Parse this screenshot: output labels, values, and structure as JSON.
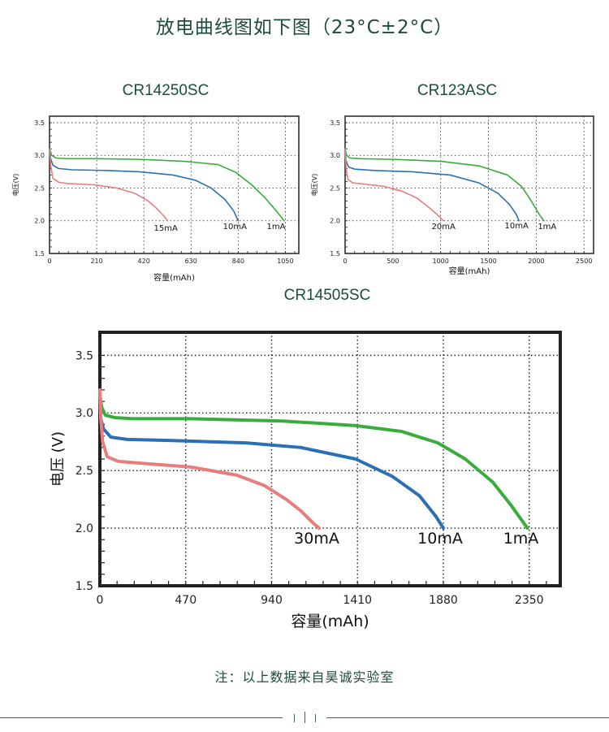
{
  "title": "放电曲线图如下图（23°C±2°C）",
  "note": "注：以上数据来自昊诚实验室",
  "colors": {
    "green": "#39ac3c",
    "blue": "#2b70b4",
    "red": "#e87d7d",
    "title": "#1d4a3e"
  },
  "chart_data": [
    {
      "type": "line",
      "title": "CR14250SC",
      "xlabel": "容量(mAh)",
      "ylabel": "电压(V)",
      "xticks": [
        0,
        210,
        420,
        630,
        840,
        1050
      ],
      "yticks": [
        1.5,
        2.0,
        2.5,
        3.0,
        3.5
      ],
      "xlim": [
        0,
        1110
      ],
      "ylim": [
        1.5,
        3.6
      ],
      "grid": true,
      "series": [
        {
          "name": "1mA",
          "color": "#39ac3c",
          "x": [
            0,
            10,
            30,
            80,
            200,
            400,
            600,
            750,
            830,
            900,
            960,
            1010,
            1045
          ],
          "y": [
            3.1,
            3.0,
            2.96,
            2.95,
            2.95,
            2.94,
            2.91,
            2.86,
            2.74,
            2.55,
            2.35,
            2.15,
            2.0
          ]
        },
        {
          "name": "10mA",
          "color": "#2b70b4",
          "x": [
            0,
            5,
            15,
            40,
            100,
            250,
            400,
            550,
            650,
            720,
            780,
            820,
            840
          ],
          "y": [
            3.1,
            2.95,
            2.85,
            2.8,
            2.78,
            2.77,
            2.75,
            2.7,
            2.62,
            2.5,
            2.33,
            2.15,
            2.0
          ]
        },
        {
          "name": "15mA",
          "color": "#e87d7d",
          "x": [
            0,
            5,
            15,
            40,
            80,
            200,
            300,
            380,
            440,
            480,
            510,
            525
          ],
          "y": [
            3.1,
            2.85,
            2.65,
            2.59,
            2.57,
            2.55,
            2.5,
            2.42,
            2.3,
            2.18,
            2.07,
            2.0
          ]
        }
      ]
    },
    {
      "type": "line",
      "title": "CR123ASC",
      "xlabel": "容量(mAh)",
      "ylabel": "电压(V)",
      "xticks": [
        0,
        500,
        1000,
        1500,
        2000,
        2500
      ],
      "yticks": [
        1.5,
        2.0,
        2.5,
        3.0,
        3.5
      ],
      "xlim": [
        0,
        2600
      ],
      "ylim": [
        1.5,
        3.6
      ],
      "grid": true,
      "series": [
        {
          "name": "1mA",
          "color": "#39ac3c",
          "x": [
            0,
            15,
            50,
            150,
            500,
            1000,
            1400,
            1700,
            1850,
            1950,
            2030,
            2080
          ],
          "y": [
            3.1,
            3.0,
            2.96,
            2.95,
            2.94,
            2.91,
            2.84,
            2.7,
            2.52,
            2.3,
            2.1,
            2.0
          ]
        },
        {
          "name": "10mA",
          "color": "#2b70b4",
          "x": [
            0,
            10,
            40,
            100,
            300,
            700,
            1100,
            1400,
            1600,
            1720,
            1790,
            1820
          ],
          "y": [
            3.1,
            2.9,
            2.82,
            2.79,
            2.77,
            2.75,
            2.7,
            2.58,
            2.42,
            2.25,
            2.1,
            2.0
          ]
        },
        {
          "name": "20mA",
          "color": "#e87d7d",
          "x": [
            0,
            10,
            30,
            80,
            200,
            400,
            600,
            750,
            880,
            960,
            1030
          ],
          "y": [
            3.1,
            2.8,
            2.63,
            2.58,
            2.56,
            2.53,
            2.45,
            2.35,
            2.2,
            2.1,
            2.0
          ]
        }
      ]
    },
    {
      "type": "line",
      "title": "CR14505SC",
      "xlabel": "容量(mAh)",
      "ylabel": "电压 (V)",
      "xticks": [
        0,
        470,
        940,
        1410,
        1880,
        2350
      ],
      "yticks": [
        1.5,
        2.0,
        2.5,
        3.0,
        3.5
      ],
      "xlim": [
        0,
        2520
      ],
      "ylim": [
        1.5,
        3.7
      ],
      "grid": true,
      "series": [
        {
          "name": "1mA",
          "color": "#39ac3c",
          "x": [
            0,
            10,
            30,
            80,
            180,
            500,
            1000,
            1400,
            1650,
            1850,
            2000,
            2150,
            2250,
            2340
          ],
          "y": [
            3.15,
            3.05,
            2.98,
            2.96,
            2.95,
            2.95,
            2.93,
            2.89,
            2.84,
            2.74,
            2.6,
            2.4,
            2.2,
            2.0
          ]
        },
        {
          "name": "10mA",
          "color": "#2b70b4",
          "x": [
            0,
            5,
            20,
            60,
            150,
            400,
            800,
            1100,
            1400,
            1600,
            1750,
            1840,
            1880
          ],
          "y": [
            3.15,
            2.95,
            2.86,
            2.79,
            2.77,
            2.76,
            2.74,
            2.7,
            2.6,
            2.45,
            2.28,
            2.1,
            2.0
          ]
        },
        {
          "name": "30mA",
          "color": "#e87d7d",
          "x": [
            0,
            5,
            15,
            40,
            100,
            250,
            500,
            750,
            900,
            1020,
            1100,
            1170,
            1200
          ],
          "y": [
            3.2,
            2.95,
            2.75,
            2.62,
            2.58,
            2.56,
            2.53,
            2.46,
            2.37,
            2.25,
            2.15,
            2.04,
            2.0
          ]
        }
      ]
    }
  ]
}
